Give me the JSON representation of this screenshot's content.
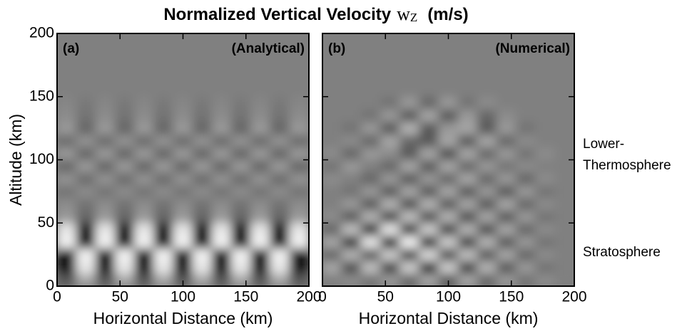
{
  "figure": {
    "title": "Normalized Vertical Velocity",
    "title_symbol": "w",
    "title_subscript": "Z",
    "title_unit": "(m/s)"
  },
  "chart_data": [
    {
      "type": "heatmap",
      "panel_label": "(a)",
      "subtitle": "(Analytical)",
      "xlabel": "Horizontal Distance (km)",
      "ylabel": "Altitude (km)",
      "xlim": [
        0,
        200
      ],
      "ylim": [
        0,
        200
      ],
      "xticks": [
        0,
        50,
        100,
        150,
        200
      ],
      "yticks": [
        0,
        50,
        100,
        150,
        200
      ],
      "zlim": [
        -1,
        1
      ],
      "values": [
        [
          -0.3,
          0.3,
          -0.3,
          0.3,
          -0.3,
          0.3,
          -0.3,
          0.3,
          -0.3,
          0.3,
          -0.3,
          0.3,
          -0.3
        ],
        [
          -0.8,
          0.8,
          -0.8,
          0.8,
          -0.8,
          0.8,
          -0.8,
          0.8,
          -0.8,
          0.8,
          -0.8,
          0.8,
          -0.8
        ],
        [
          -0.9,
          0.9,
          -0.9,
          0.9,
          -0.9,
          0.9,
          -0.9,
          0.9,
          -0.9,
          0.9,
          -0.9,
          0.9,
          -0.9
        ],
        [
          0.9,
          -0.9,
          0.9,
          -0.9,
          0.9,
          -0.9,
          0.9,
          -0.9,
          0.9,
          -0.9,
          0.9,
          -0.9,
          0.9
        ],
        [
          0.8,
          -0.8,
          0.8,
          -0.8,
          0.8,
          -0.8,
          0.8,
          -0.8,
          0.8,
          -0.8,
          0.8,
          -0.8,
          0.8
        ],
        [
          0.2,
          -0.2,
          0.2,
          -0.2,
          0.2,
          -0.2,
          0.2,
          -0.2,
          0.2,
          -0.2,
          0.2,
          -0.2,
          0.2
        ],
        [
          0.1,
          -0.1,
          0.1,
          -0.1,
          0.1,
          -0.1,
          0.1,
          -0.1,
          0.1,
          -0.1,
          0.1,
          -0.1,
          0.1
        ],
        [
          -0.1,
          0.1,
          -0.1,
          0.1,
          -0.1,
          0.1,
          -0.1,
          0.1,
          -0.1,
          0.1,
          -0.1,
          0.1,
          -0.1
        ],
        [
          0.15,
          -0.15,
          0.15,
          -0.15,
          0.15,
          -0.15,
          0.15,
          -0.15,
          0.15,
          -0.15,
          0.15,
          -0.15,
          0.15
        ],
        [
          -0.2,
          0.2,
          -0.2,
          0.2,
          -0.2,
          0.2,
          -0.2,
          0.2,
          -0.2,
          0.2,
          -0.2,
          0.2,
          -0.2
        ],
        [
          0.2,
          -0.2,
          0.2,
          -0.2,
          0.2,
          -0.2,
          0.2,
          -0.2,
          0.2,
          -0.2,
          0.2,
          -0.2,
          0.2
        ],
        [
          -0.15,
          0.15,
          -0.15,
          0.15,
          -0.15,
          0.15,
          -0.15,
          0.15,
          -0.15,
          0.15,
          -0.15,
          0.15,
          -0.15
        ],
        [
          0.2,
          -0.2,
          0.2,
          -0.2,
          0.2,
          -0.2,
          0.2,
          -0.2,
          0.2,
          -0.2,
          0.2,
          -0.2,
          0.2
        ],
        [
          0.1,
          -0.1,
          0.1,
          -0.1,
          0.1,
          -0.1,
          0.1,
          -0.1,
          0.1,
          -0.1,
          0.1,
          -0.1,
          0.1
        ],
        [
          0.05,
          -0.05,
          0.05,
          -0.05,
          0.05,
          -0.05,
          0.05,
          -0.05,
          0.05,
          -0.05,
          0.05,
          -0.05,
          0.05
        ],
        [
          0,
          0,
          0,
          0,
          0,
          0,
          0,
          0,
          0,
          0,
          0,
          0,
          0
        ],
        [
          0,
          0,
          0,
          0,
          0,
          0,
          0,
          0,
          0,
          0,
          0,
          0,
          0
        ],
        [
          0,
          0,
          0,
          0,
          0,
          0,
          0,
          0,
          0,
          0,
          0,
          0,
          0
        ],
        [
          0,
          0,
          0,
          0,
          0,
          0,
          0,
          0,
          0,
          0,
          0,
          0,
          0
        ],
        [
          0,
          0,
          0,
          0,
          0,
          0,
          0,
          0,
          0,
          0,
          0,
          0,
          0
        ]
      ]
    },
    {
      "type": "heatmap",
      "panel_label": "(b)",
      "subtitle": "(Numerical)",
      "xlabel": "Horizontal Distance (km)",
      "xlim": [
        0,
        200
      ],
      "ylim": [
        0,
        200
      ],
      "xticks": [
        0,
        50,
        100,
        150,
        200
      ],
      "yticks": [
        0,
        50,
        100,
        150,
        200
      ],
      "zlim": [
        -1,
        1
      ],
      "annotations": [
        "Lower-",
        "Thermosphere",
        "Stratosphere"
      ],
      "values": [
        [
          0,
          0.1,
          -0.1,
          0.2,
          -0.2,
          0.3,
          -0.3,
          0.3,
          -0.2,
          0.2,
          -0.1,
          0.1,
          0
        ],
        [
          0.3,
          -0.4,
          0.5,
          -0.5,
          0.6,
          -0.7,
          0.6,
          -0.5,
          0.4,
          -0.3,
          0.2,
          -0.1,
          0
        ],
        [
          -0.2,
          0.4,
          -0.3,
          0.6,
          -0.5,
          0.7,
          -0.4,
          0.5,
          -0.3,
          0.3,
          -0.2,
          0.1,
          0
        ],
        [
          0.3,
          -0.6,
          0.8,
          -0.8,
          0.9,
          -0.7,
          0.6,
          -0.5,
          0.4,
          -0.3,
          0.2,
          -0.1,
          0
        ],
        [
          -0.2,
          0.5,
          -0.7,
          0.8,
          -0.6,
          0.6,
          -0.5,
          0.4,
          -0.4,
          0.3,
          -0.2,
          0.1,
          0
        ],
        [
          0.1,
          -0.3,
          0.4,
          -0.5,
          0.5,
          -0.4,
          0.4,
          -0.4,
          0.3,
          -0.3,
          0.2,
          -0.1,
          0
        ],
        [
          0,
          0.2,
          -0.3,
          0.4,
          -0.4,
          0.4,
          -0.3,
          0.3,
          -0.3,
          0.3,
          -0.2,
          0.1,
          0
        ],
        [
          0,
          -0.1,
          0.2,
          -0.3,
          0.3,
          -0.3,
          0.3,
          -0.3,
          0.2,
          -0.3,
          0.2,
          -0.1,
          0
        ],
        [
          0.1,
          0,
          -0.2,
          0.2,
          -0.3,
          0.2,
          -0.2,
          0.3,
          -0.2,
          0.2,
          -0.2,
          0.1,
          0
        ],
        [
          -0.1,
          0.2,
          0,
          -0.2,
          0.3,
          -0.3,
          0.3,
          -0.2,
          0.2,
          -0.1,
          0.1,
          0,
          0
        ],
        [
          0.1,
          -0.2,
          0.2,
          0.1,
          -0.3,
          0.3,
          -0.4,
          0.3,
          -0.2,
          0.2,
          -0.1,
          0.1,
          0
        ],
        [
          0,
          0.1,
          -0.2,
          0.3,
          -0.2,
          -0.3,
          0.3,
          -0.3,
          0.3,
          -0.2,
          0.1,
          0,
          0
        ],
        [
          0,
          -0.1,
          0.2,
          -0.3,
          0.4,
          -0.3,
          0.2,
          0.3,
          -0.3,
          0.2,
          -0.1,
          0,
          0
        ],
        [
          0,
          0,
          -0.1,
          0.2,
          -0.3,
          0.3,
          -0.3,
          0.2,
          -0.2,
          0.1,
          0,
          0,
          0
        ],
        [
          0,
          0,
          0,
          -0.1,
          0.2,
          -0.2,
          0.2,
          -0.1,
          0.1,
          0,
          0,
          0,
          0
        ],
        [
          0,
          0,
          0,
          0,
          0,
          0,
          0,
          0,
          0,
          0,
          0,
          0,
          0
        ],
        [
          0,
          0,
          0,
          0,
          0,
          0,
          0,
          0,
          0,
          0,
          0,
          0,
          0
        ],
        [
          0,
          0,
          0,
          0,
          0,
          0,
          0,
          0,
          0,
          0,
          0,
          0,
          0
        ],
        [
          0,
          0,
          0,
          0,
          0,
          0,
          0,
          0,
          0,
          0,
          0,
          0,
          0
        ],
        [
          0,
          0,
          0,
          0,
          0,
          0,
          0,
          0,
          0,
          0,
          0,
          0,
          0
        ]
      ]
    }
  ]
}
